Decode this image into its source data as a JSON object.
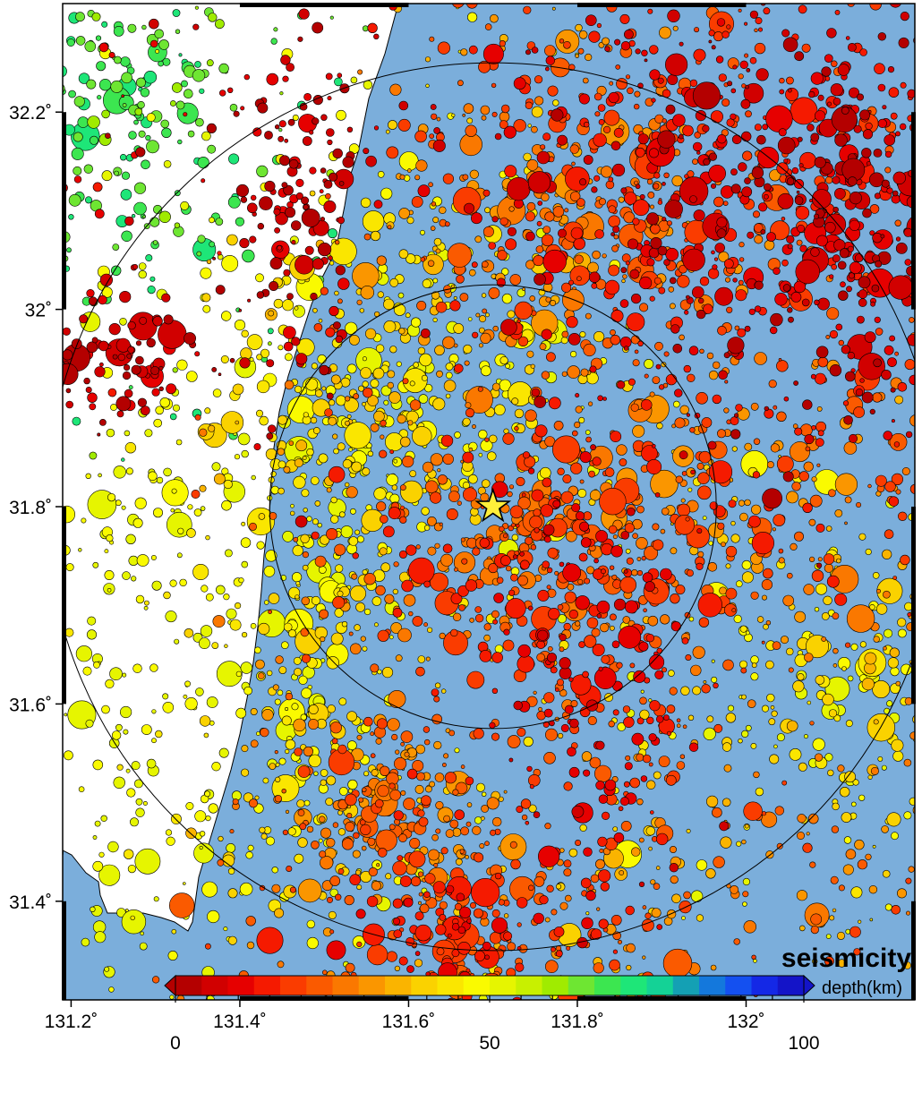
{
  "map": {
    "title": "seismicity",
    "lon_range": [
      131.19,
      132.2
    ],
    "lat_range": [
      31.3,
      32.31
    ],
    "x_ticks": [
      {
        "value": 131.2,
        "label": "131.2˚"
      },
      {
        "value": 131.4,
        "label": "131.4˚"
      },
      {
        "value": 131.6,
        "label": "131.6˚"
      },
      {
        "value": 131.8,
        "label": "131.8˚"
      },
      {
        "value": 132.0,
        "label": "132˚"
      }
    ],
    "y_ticks": [
      {
        "value": 32.2,
        "label": "32.2˚"
      },
      {
        "value": 32.0,
        "label": "32˚"
      },
      {
        "value": 31.8,
        "label": "31.8˚"
      },
      {
        "value": 31.6,
        "label": "31.6˚"
      },
      {
        "value": 31.4,
        "label": "31.4˚"
      }
    ],
    "epicenter": {
      "lon": 131.7,
      "lat": 31.8
    },
    "range_circles_deg_lat": [
      0.225,
      0.45
    ],
    "colors": {
      "sea": "#7baedb",
      "land": "#ffffff",
      "frame": "#000000"
    }
  },
  "colorbar": {
    "label": "depth(km)",
    "ticks": [
      {
        "value": 0,
        "label": "0"
      },
      {
        "value": 50,
        "label": "50"
      },
      {
        "value": 100,
        "label": "100"
      }
    ],
    "range": [
      0,
      100
    ],
    "palette": [
      "#b40000",
      "#d10000",
      "#e60000",
      "#f51a00",
      "#fa3c00",
      "#fa5a00",
      "#fa7800",
      "#fa9600",
      "#fab400",
      "#fad200",
      "#fae600",
      "#fafa00",
      "#e6f500",
      "#c8f000",
      "#a0eb00",
      "#6ee632",
      "#3ce650",
      "#1ee678",
      "#14d296",
      "#14a0b4",
      "#1478dc",
      "#1450f0",
      "#1428e6",
      "#1414c8"
    ]
  }
}
